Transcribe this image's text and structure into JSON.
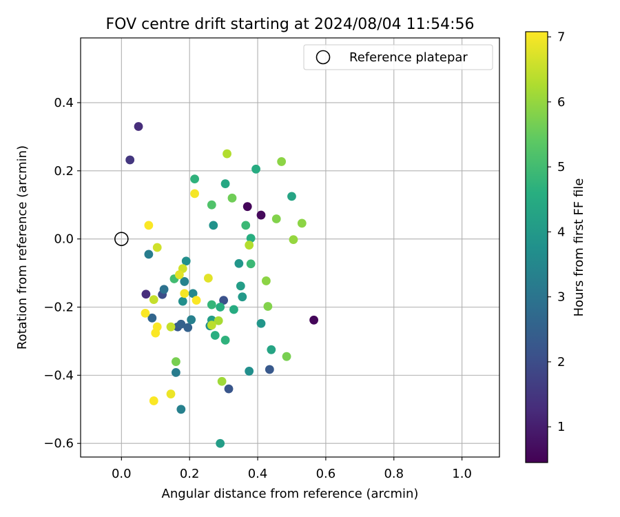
{
  "chart_data": {
    "type": "scatter",
    "title": "FOV centre drift starting at 2024/08/04 11:54:56",
    "xlabel": "Angular distance from reference (arcmin)",
    "ylabel": "Rotation from reference (arcmin)",
    "xlim": [
      -0.12,
      1.11
    ],
    "ylim": [
      -0.64,
      0.59
    ],
    "xticks": [
      0.0,
      0.2,
      0.4,
      0.6,
      0.8,
      1.0
    ],
    "xtick_labels": [
      "0.0",
      "0.2",
      "0.4",
      "0.6",
      "0.8",
      "1.0"
    ],
    "yticks": [
      0.4,
      0.2,
      0.0,
      -0.2,
      -0.4,
      -0.6
    ],
    "ytick_labels": [
      "0.4",
      "0.2",
      "0.0",
      "−0.2",
      "−0.4",
      "−0.6"
    ],
    "grid": true,
    "legend": {
      "position": "top-right",
      "entries": [
        {
          "label": "Reference platepar",
          "marker": "open-circle"
        }
      ]
    },
    "reference_point": {
      "x": 0.0,
      "y": 0.0
    },
    "colorbar": {
      "label": "Hours from first FF file",
      "colormap": "viridis",
      "range": [
        0.45,
        7.08
      ],
      "ticks": [
        1,
        2,
        3,
        4,
        5,
        6,
        7
      ],
      "tick_labels": [
        "1",
        "2",
        "3",
        "4",
        "5",
        "6",
        "7"
      ]
    },
    "points": [
      {
        "x": 0.05,
        "y": 0.33,
        "c": 1.3
      },
      {
        "x": 0.025,
        "y": 0.232,
        "c": 1.5
      },
      {
        "x": 0.37,
        "y": 0.095,
        "c": 0.55
      },
      {
        "x": 0.41,
        "y": 0.07,
        "c": 0.6
      },
      {
        "x": 0.565,
        "y": -0.238,
        "c": 0.55
      },
      {
        "x": 0.072,
        "y": -0.162,
        "c": 1.3
      },
      {
        "x": 0.12,
        "y": -0.163,
        "c": 2.0
      },
      {
        "x": 0.3,
        "y": -0.18,
        "c": 2.1
      },
      {
        "x": 0.315,
        "y": -0.44,
        "c": 2.2
      },
      {
        "x": 0.435,
        "y": -0.383,
        "c": 2.3
      },
      {
        "x": 0.165,
        "y": -0.258,
        "c": 2.3
      },
      {
        "x": 0.175,
        "y": -0.25,
        "c": 2.5
      },
      {
        "x": 0.195,
        "y": -0.26,
        "c": 2.5
      },
      {
        "x": 0.09,
        "y": -0.232,
        "c": 2.6
      },
      {
        "x": 0.125,
        "y": -0.148,
        "c": 2.9
      },
      {
        "x": 0.08,
        "y": -0.045,
        "c": 3.2
      },
      {
        "x": 0.16,
        "y": -0.392,
        "c": 3.2
      },
      {
        "x": 0.175,
        "y": -0.5,
        "c": 3.3
      },
      {
        "x": 0.205,
        "y": -0.237,
        "c": 3.3
      },
      {
        "x": 0.21,
        "y": -0.16,
        "c": 3.5
      },
      {
        "x": 0.185,
        "y": -0.125,
        "c": 3.4
      },
      {
        "x": 0.19,
        "y": -0.065,
        "c": 3.7
      },
      {
        "x": 0.18,
        "y": -0.183,
        "c": 3.7
      },
      {
        "x": 0.27,
        "y": 0.04,
        "c": 3.8
      },
      {
        "x": 0.26,
        "y": -0.255,
        "c": 3.7
      },
      {
        "x": 0.375,
        "y": -0.388,
        "c": 3.7
      },
      {
        "x": 0.41,
        "y": -0.248,
        "c": 3.9
      },
      {
        "x": 0.345,
        "y": -0.072,
        "c": 3.9
      },
      {
        "x": 0.355,
        "y": -0.17,
        "c": 4.0
      },
      {
        "x": 0.35,
        "y": -0.138,
        "c": 4.1
      },
      {
        "x": 0.29,
        "y": -0.6,
        "c": 4.1
      },
      {
        "x": 0.265,
        "y": -0.238,
        "c": 4.1
      },
      {
        "x": 0.44,
        "y": -0.325,
        "c": 4.3
      },
      {
        "x": 0.5,
        "y": 0.125,
        "c": 4.3
      },
      {
        "x": 0.395,
        "y": 0.205,
        "c": 4.5
      },
      {
        "x": 0.305,
        "y": 0.162,
        "c": 4.4
      },
      {
        "x": 0.29,
        "y": -0.2,
        "c": 4.6
      },
      {
        "x": 0.33,
        "y": -0.207,
        "c": 4.5
      },
      {
        "x": 0.38,
        "y": 0.002,
        "c": 4.6
      },
      {
        "x": 0.275,
        "y": -0.283,
        "c": 4.6
      },
      {
        "x": 0.305,
        "y": -0.297,
        "c": 4.7
      },
      {
        "x": 0.215,
        "y": 0.176,
        "c": 4.7
      },
      {
        "x": 0.265,
        "y": -0.193,
        "c": 4.8
      },
      {
        "x": 0.365,
        "y": 0.04,
        "c": 4.9
      },
      {
        "x": 0.38,
        "y": -0.073,
        "c": 4.9
      },
      {
        "x": 0.155,
        "y": -0.117,
        "c": 5.0
      },
      {
        "x": 0.265,
        "y": 0.1,
        "c": 5.2
      },
      {
        "x": 0.325,
        "y": 0.12,
        "c": 5.6
      },
      {
        "x": 0.485,
        "y": -0.345,
        "c": 5.7
      },
      {
        "x": 0.455,
        "y": 0.059,
        "c": 5.8
      },
      {
        "x": 0.16,
        "y": -0.36,
        "c": 5.7
      },
      {
        "x": 0.43,
        "y": -0.198,
        "c": 5.8
      },
      {
        "x": 0.425,
        "y": -0.123,
        "c": 5.9
      },
      {
        "x": 0.47,
        "y": 0.227,
        "c": 5.9
      },
      {
        "x": 0.53,
        "y": 0.046,
        "c": 5.9
      },
      {
        "x": 0.505,
        "y": -0.002,
        "c": 6.0
      },
      {
        "x": 0.295,
        "y": -0.418,
        "c": 6.1
      },
      {
        "x": 0.285,
        "y": -0.24,
        "c": 6.2
      },
      {
        "x": 0.31,
        "y": 0.25,
        "c": 6.3
      },
      {
        "x": 0.375,
        "y": -0.018,
        "c": 6.3
      },
      {
        "x": 0.265,
        "y": -0.253,
        "c": 6.4
      },
      {
        "x": 0.145,
        "y": -0.258,
        "c": 6.5
      },
      {
        "x": 0.095,
        "y": -0.178,
        "c": 6.5
      },
      {
        "x": 0.105,
        "y": -0.025,
        "c": 6.6
      },
      {
        "x": 0.18,
        "y": -0.087,
        "c": 6.6
      },
      {
        "x": 0.17,
        "y": -0.105,
        "c": 6.8
      },
      {
        "x": 0.255,
        "y": -0.115,
        "c": 6.8
      },
      {
        "x": 0.145,
        "y": -0.455,
        "c": 6.9
      },
      {
        "x": 0.185,
        "y": -0.16,
        "c": 7.0
      },
      {
        "x": 0.215,
        "y": 0.133,
        "c": 7.0
      },
      {
        "x": 0.22,
        "y": -0.18,
        "c": 7.05
      },
      {
        "x": 0.08,
        "y": 0.04,
        "c": 7.05
      },
      {
        "x": 0.07,
        "y": -0.218,
        "c": 7.05
      },
      {
        "x": 0.105,
        "y": -0.258,
        "c": 7.05
      },
      {
        "x": 0.1,
        "y": -0.276,
        "c": 7.05
      },
      {
        "x": 0.095,
        "y": -0.475,
        "c": 7.05
      }
    ]
  }
}
